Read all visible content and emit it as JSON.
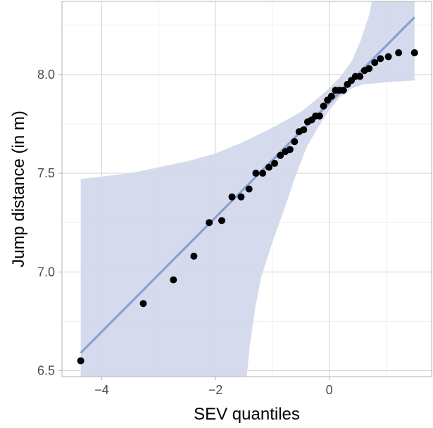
{
  "colors": {
    "background": "#ffffff",
    "panel_border": "#b3b3b3",
    "grid_major": "#d9d9d9",
    "grid_minor": "#ededed",
    "band_fill": "#d3d9eb",
    "fit_line": "#8a9fd3",
    "point": "#000000",
    "tick_text": "#4d4d4d",
    "title_text": "#000000"
  },
  "chart_data": {
    "type": "scatter",
    "xlabel": "SEV quantiles",
    "ylabel": "Jump distance (in m)",
    "xlim": [
      -4.7,
      1.8
    ],
    "ylim": [
      6.47,
      8.37
    ],
    "x_ticks": [
      {
        "value": -4,
        "label": "−4"
      },
      {
        "value": -2,
        "label": "−2"
      },
      {
        "value": 0,
        "label": "0"
      }
    ],
    "y_ticks": [
      {
        "value": 6.5,
        "label": "6.5"
      },
      {
        "value": 7.0,
        "label": "7.0"
      },
      {
        "value": 7.5,
        "label": "7.5"
      },
      {
        "value": 8.0,
        "label": "8.0"
      }
    ],
    "grid": true,
    "points": [
      {
        "x": -4.37,
        "y": 6.55
      },
      {
        "x": -3.27,
        "y": 6.84
      },
      {
        "x": -2.74,
        "y": 6.96
      },
      {
        "x": -2.38,
        "y": 7.08
      },
      {
        "x": -2.11,
        "y": 7.25
      },
      {
        "x": -1.89,
        "y": 7.26
      },
      {
        "x": -1.71,
        "y": 7.38
      },
      {
        "x": -1.55,
        "y": 7.38
      },
      {
        "x": -1.41,
        "y": 7.42
      },
      {
        "x": -1.29,
        "y": 7.5
      },
      {
        "x": -1.17,
        "y": 7.5
      },
      {
        "x": -1.06,
        "y": 7.53
      },
      {
        "x": -0.96,
        "y": 7.55
      },
      {
        "x": -0.86,
        "y": 7.59
      },
      {
        "x": -0.77,
        "y": 7.61
      },
      {
        "x": -0.69,
        "y": 7.62
      },
      {
        "x": -0.61,
        "y": 7.66
      },
      {
        "x": -0.53,
        "y": 7.71
      },
      {
        "x": -0.45,
        "y": 7.72
      },
      {
        "x": -0.38,
        "y": 7.76
      },
      {
        "x": -0.31,
        "y": 7.77
      },
      {
        "x": -0.24,
        "y": 7.79
      },
      {
        "x": -0.17,
        "y": 7.79
      },
      {
        "x": -0.1,
        "y": 7.84
      },
      {
        "x": -0.03,
        "y": 7.87
      },
      {
        "x": 0.04,
        "y": 7.89
      },
      {
        "x": 0.11,
        "y": 7.92
      },
      {
        "x": 0.18,
        "y": 7.92
      },
      {
        "x": 0.25,
        "y": 7.92
      },
      {
        "x": 0.32,
        "y": 7.95
      },
      {
        "x": 0.39,
        "y": 7.97
      },
      {
        "x": 0.46,
        "y": 7.99
      },
      {
        "x": 0.54,
        "y": 7.99
      },
      {
        "x": 0.62,
        "y": 8.02
      },
      {
        "x": 0.7,
        "y": 8.03
      },
      {
        "x": 0.8,
        "y": 8.06
      },
      {
        "x": 0.9,
        "y": 8.08
      },
      {
        "x": 1.04,
        "y": 8.09
      },
      {
        "x": 1.22,
        "y": 8.11
      },
      {
        "x": 1.5,
        "y": 8.11
      }
    ],
    "fit_line": {
      "x": [
        -4.37,
        1.5
      ],
      "y": [
        6.59,
        8.29
      ]
    },
    "band_upper": [
      {
        "x": -4.37,
        "y": 7.47
      },
      {
        "x": -3.5,
        "y": 7.5
      },
      {
        "x": -3.0,
        "y": 7.53
      },
      {
        "x": -2.5,
        "y": 7.56
      },
      {
        "x": -2.0,
        "y": 7.6
      },
      {
        "x": -1.5,
        "y": 7.66
      },
      {
        "x": -1.0,
        "y": 7.73
      },
      {
        "x": -0.5,
        "y": 7.81
      },
      {
        "x": -0.2,
        "y": 7.88
      },
      {
        "x": 0.0,
        "y": 7.93
      },
      {
        "x": 0.2,
        "y": 7.99
      },
      {
        "x": 0.4,
        "y": 8.07
      },
      {
        "x": 0.55,
        "y": 8.17
      },
      {
        "x": 0.7,
        "y": 8.3
      },
      {
        "x": 0.75,
        "y": 8.37
      }
    ],
    "band_lower": [
      {
        "x": -1.45,
        "y": 6.47
      },
      {
        "x": -1.4,
        "y": 6.62
      },
      {
        "x": -1.3,
        "y": 6.82
      },
      {
        "x": -1.2,
        "y": 6.97
      },
      {
        "x": -1.0,
        "y": 7.15
      },
      {
        "x": -0.8,
        "y": 7.31
      },
      {
        "x": -0.6,
        "y": 7.48
      },
      {
        "x": -0.4,
        "y": 7.63
      },
      {
        "x": -0.2,
        "y": 7.73
      },
      {
        "x": 0.0,
        "y": 7.82
      },
      {
        "x": 0.2,
        "y": 7.89
      },
      {
        "x": 0.4,
        "y": 7.93
      },
      {
        "x": 0.6,
        "y": 7.95
      },
      {
        "x": 1.0,
        "y": 7.96
      },
      {
        "x": 1.5,
        "y": 7.97
      }
    ]
  }
}
